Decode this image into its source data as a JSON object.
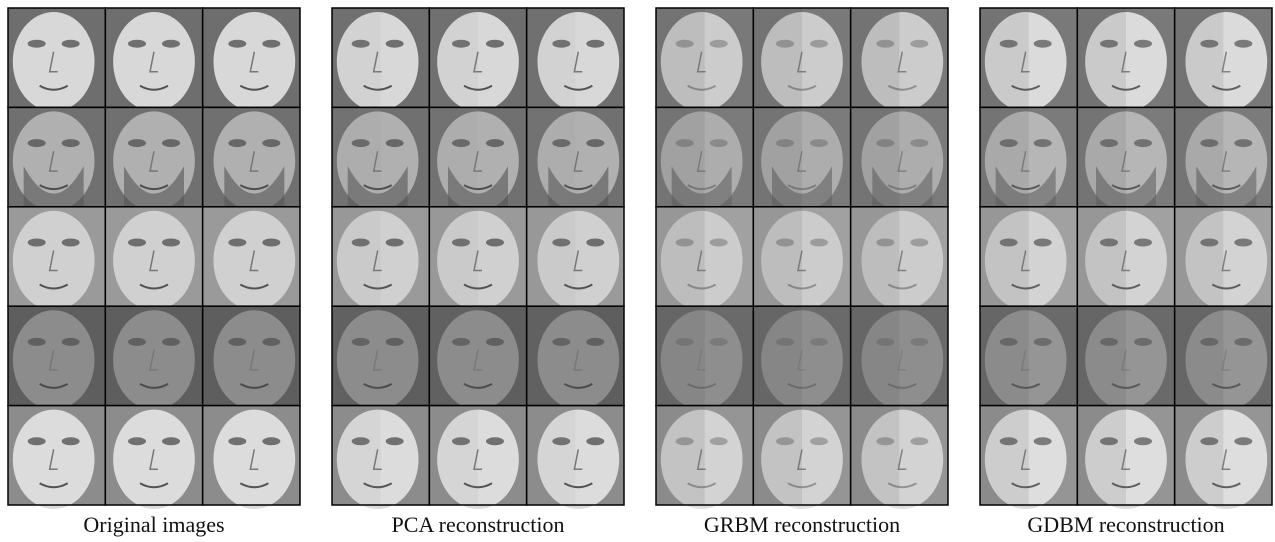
{
  "panels": [
    {
      "caption": "Original images"
    },
    {
      "caption": "PCA reconstruction"
    },
    {
      "caption": "GRBM reconstruction"
    },
    {
      "caption": "GDBM reconstruction"
    }
  ]
}
